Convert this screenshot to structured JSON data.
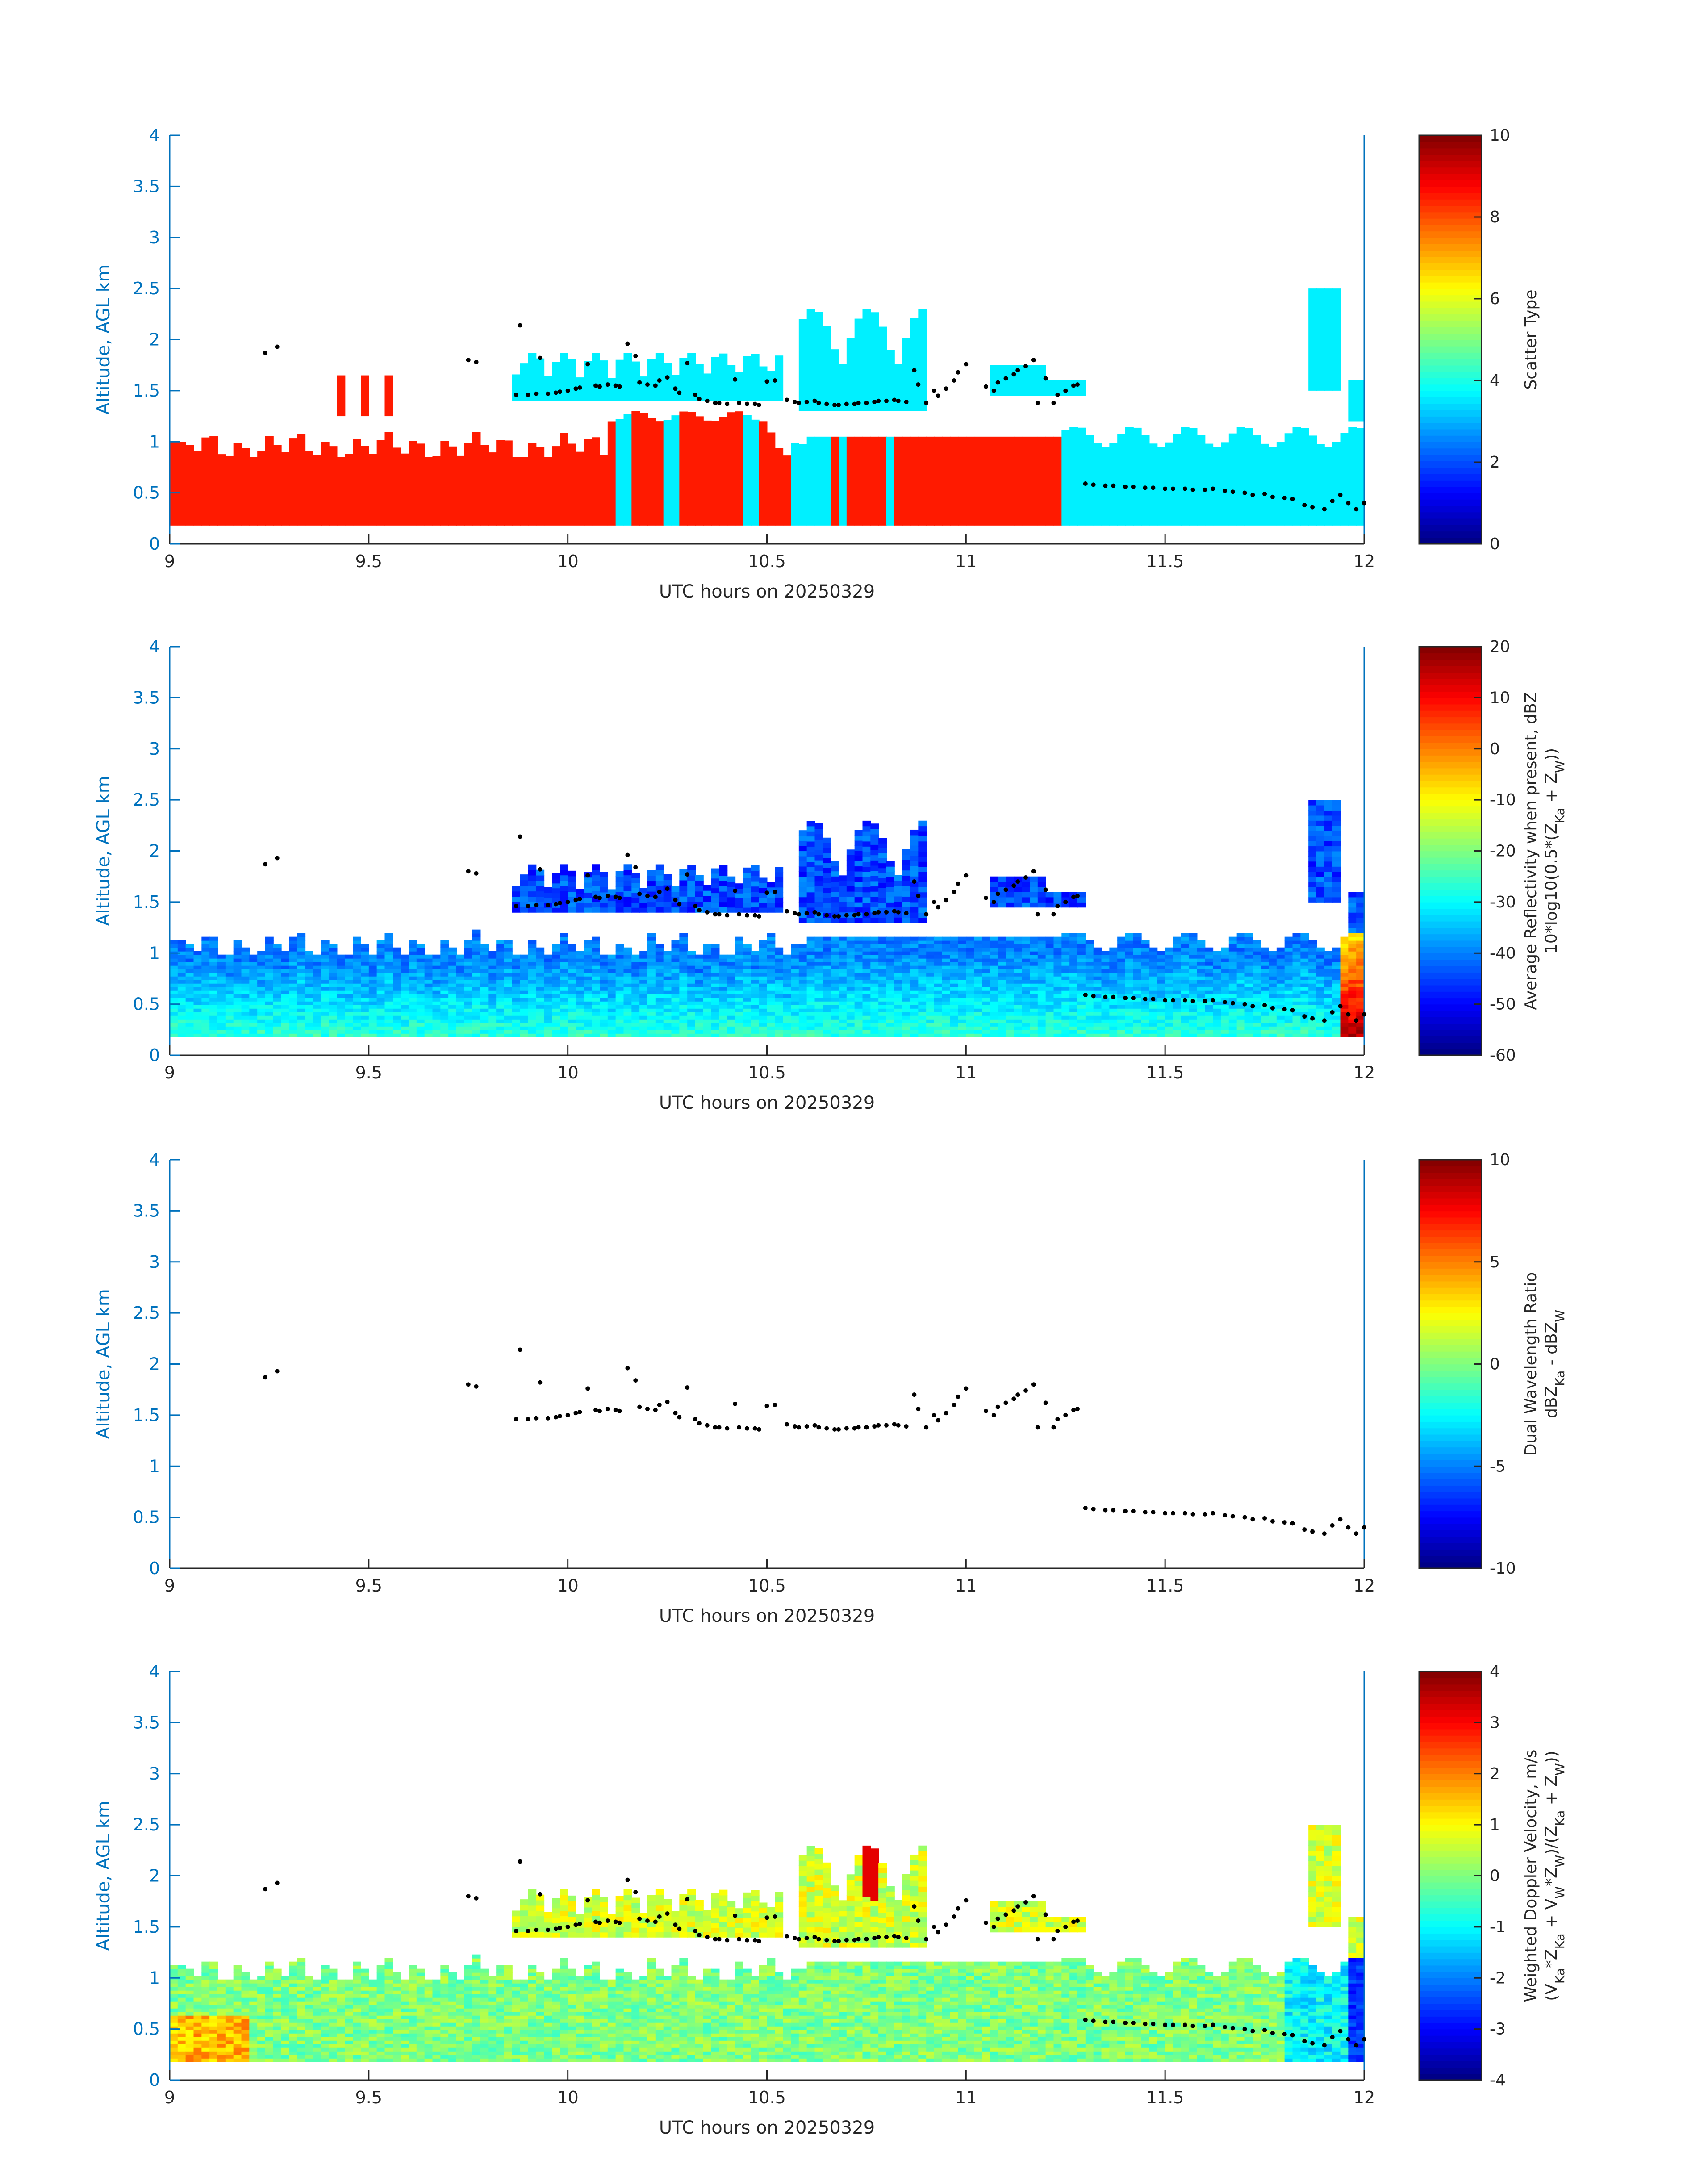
{
  "figure": {
    "xlabel": "UTC hours on 20250329",
    "ylabel": "Altitude, AGL km",
    "x_ticks": [
      "9",
      "9.5",
      "10",
      "10.5",
      "11",
      "11.5",
      "12"
    ],
    "y_ticks": [
      "0",
      "0.5",
      "1",
      "1.5",
      "2",
      "2.5",
      "3",
      "3.5",
      "4"
    ],
    "axis_color": "#0072BD"
  },
  "chart_data": [
    {
      "type": "heatmap",
      "title": "",
      "xlabel": "UTC hours on 20250329",
      "ylabel": "Altitude, AGL km",
      "xlim": [
        9,
        12
      ],
      "ylim": [
        0,
        4
      ],
      "colorbar": {
        "label": "Scatter Type",
        "ticks": [
          "0",
          "2",
          "4",
          "6",
          "8",
          "10"
        ],
        "range": [
          0,
          10
        ]
      },
      "regions": [
        {
          "name": "scatter type ~8.5 (precipitation)",
          "value": 8.5,
          "x_range": [
            9.0,
            11.25
          ],
          "alt_top_km": 1.05,
          "alt_bottom_km": 0.18
        },
        {
          "name": "scatter type ~3.5 (cloud)",
          "value": 3.5,
          "x_range": [
            9.86,
            12.0
          ],
          "alt_range_km": [
            1.0,
            2.55
          ]
        }
      ]
    },
    {
      "type": "heatmap",
      "title": "",
      "xlabel": "UTC hours on 20250329",
      "ylabel": "Altitude, AGL km",
      "xlim": [
        9,
        12
      ],
      "ylim": [
        0,
        4
      ],
      "colorbar": {
        "label_line1": "Average Reflectivity when present, dBZ",
        "label_line2": "10*log10(0.5*(Z",
        "label_sub1": "Ka",
        "label_mid": " + Z",
        "label_sub2": "W",
        "label_end": "))",
        "ticks": [
          "-60",
          "-50",
          "-40",
          "-30",
          "-20",
          "-10",
          "0",
          "10",
          "20"
        ],
        "range": [
          -60,
          20
        ]
      }
    },
    {
      "type": "heatmap",
      "title": "",
      "xlabel": "UTC hours on 20250329",
      "ylabel": "Altitude, AGL km",
      "xlim": [
        9,
        12
      ],
      "ylim": [
        0,
        4
      ],
      "colorbar": {
        "label_line1": "Dual Wavelength Ratio",
        "label_line2": "dBZ",
        "label_sub1": "Ka",
        "label_mid": " - dBZ",
        "label_sub2": "W",
        "ticks": [
          "-10",
          "-5",
          "0",
          "5",
          "10"
        ],
        "range": [
          -10,
          10
        ]
      }
    },
    {
      "type": "heatmap",
      "title": "",
      "xlabel": "UTC hours on 20250329",
      "ylabel": "Altitude, AGL km",
      "xlim": [
        9,
        12
      ],
      "ylim": [
        0,
        4
      ],
      "colorbar": {
        "label_line1": "Weighted Doppler Velocity, m/s",
        "label_line2": "(V",
        "ticks": [
          "-4",
          "-3",
          "-2",
          "-1",
          "0",
          "1",
          "2",
          "3",
          "4"
        ],
        "range": [
          -4,
          4
        ]
      }
    }
  ],
  "overlay_points": {
    "description": "black dots (cloud base) shared by all panels",
    "x": [
      9.24,
      9.27,
      9.75,
      9.77,
      9.87,
      9.88,
      9.9,
      9.92,
      9.93,
      9.95,
      9.97,
      9.98,
      10.0,
      10.02,
      10.03,
      10.05,
      10.07,
      10.08,
      10.1,
      10.12,
      10.13,
      10.15,
      10.17,
      10.18,
      10.2,
      10.22,
      10.23,
      10.25,
      10.27,
      10.28,
      10.3,
      10.32,
      10.33,
      10.35,
      10.37,
      10.38,
      10.4,
      10.42,
      10.43,
      10.45,
      10.47,
      10.48,
      10.5,
      10.52,
      10.55,
      10.57,
      10.58,
      10.6,
      10.62,
      10.63,
      10.65,
      10.67,
      10.68,
      10.7,
      10.72,
      10.73,
      10.75,
      10.77,
      10.78,
      10.8,
      10.82,
      10.83,
      10.85,
      10.87,
      10.88,
      10.9,
      10.92,
      10.93,
      10.95,
      10.97,
      10.98,
      11.0,
      11.05,
      11.07,
      11.08,
      11.1,
      11.12,
      11.13,
      11.15,
      11.17,
      11.18,
      11.2,
      11.22,
      11.23,
      11.25,
      11.27,
      11.28,
      11.3,
      11.32,
      11.35,
      11.37,
      11.4,
      11.42,
      11.45,
      11.47,
      11.5,
      11.52,
      11.55,
      11.57,
      11.6,
      11.62,
      11.65,
      11.67,
      11.7,
      11.72,
      11.75,
      11.77,
      11.8,
      11.82,
      11.85,
      11.87,
      11.9,
      11.92,
      11.94,
      11.96,
      11.98,
      12.0
    ],
    "y": [
      1.87,
      1.93,
      1.8,
      1.78,
      1.46,
      2.14,
      1.46,
      1.47,
      1.82,
      1.47,
      1.48,
      1.49,
      1.5,
      1.52,
      1.53,
      1.76,
      1.55,
      1.54,
      1.56,
      1.55,
      1.54,
      1.96,
      1.84,
      1.58,
      1.56,
      1.55,
      1.6,
      1.63,
      1.52,
      1.48,
      1.77,
      1.46,
      1.42,
      1.4,
      1.38,
      1.38,
      1.37,
      1.61,
      1.38,
      1.37,
      1.37,
      1.36,
      1.59,
      1.6,
      1.41,
      1.39,
      1.38,
      1.39,
      1.4,
      1.38,
      1.37,
      1.36,
      1.36,
      1.37,
      1.37,
      1.38,
      1.38,
      1.39,
      1.4,
      1.4,
      1.41,
      1.4,
      1.39,
      1.7,
      1.56,
      1.38,
      1.5,
      1.45,
      1.52,
      1.6,
      1.68,
      1.76,
      1.54,
      1.5,
      1.58,
      1.62,
      1.66,
      1.7,
      1.74,
      1.8,
      1.38,
      1.62,
      1.38,
      1.46,
      1.5,
      1.55,
      1.56,
      0.59,
      0.58,
      0.57,
      0.57,
      0.56,
      0.56,
      0.55,
      0.55,
      0.54,
      0.54,
      0.54,
      0.53,
      0.53,
      0.54,
      0.52,
      0.51,
      0.5,
      0.48,
      0.49,
      0.46,
      0.45,
      0.44,
      0.38,
      0.36,
      0.34,
      0.42,
      0.48,
      0.4,
      0.34,
      0.4
    ]
  }
}
